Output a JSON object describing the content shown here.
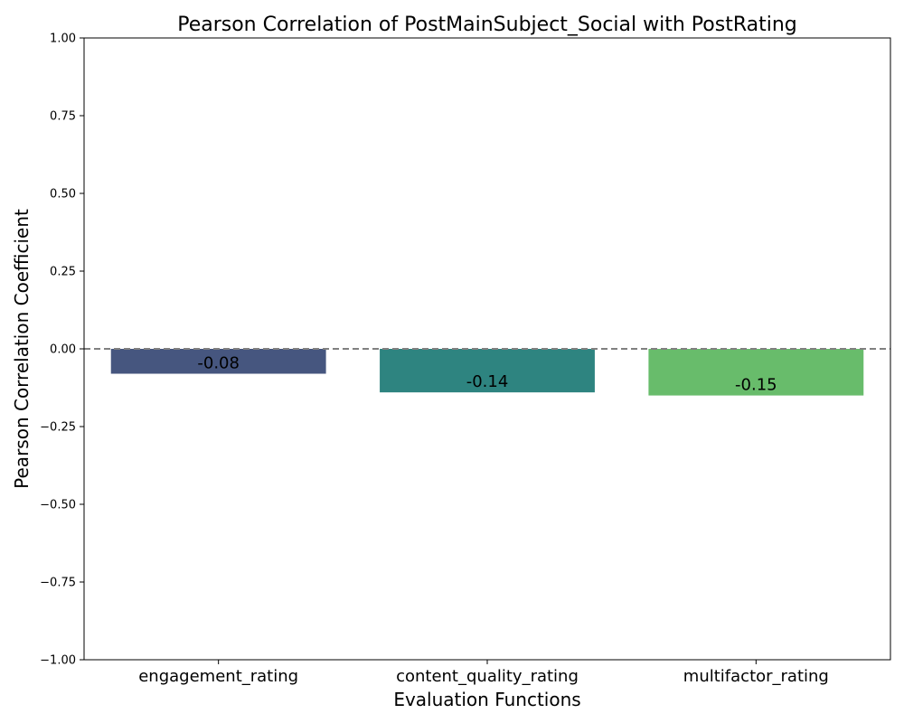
{
  "chart_data": {
    "type": "bar",
    "title": "Pearson Correlation of PostMainSubject_Social with PostRating",
    "xlabel": "Evaluation Functions",
    "ylabel": "Pearson Correlation Coefficient",
    "categories": [
      "engagement_rating",
      "content_quality_rating",
      "multifactor_rating"
    ],
    "values": [
      -0.08,
      -0.14,
      -0.15
    ],
    "value_labels": [
      "-0.08",
      "-0.14",
      "-0.15"
    ],
    "bar_colors": [
      "#46567f",
      "#2e8480",
      "#68bc6b"
    ],
    "ylim": [
      -1.0,
      1.0
    ],
    "yticks": [
      1.0,
      0.75,
      0.5,
      0.25,
      0.0,
      -0.25,
      -0.5,
      -0.75,
      -1.0
    ],
    "ytick_labels": [
      "1.00",
      "0.75",
      "0.50",
      "0.25",
      "0.00",
      "−0.25",
      "−0.50",
      "−0.75",
      "−1.00"
    ],
    "reference_line": {
      "y": 0.0,
      "style": "dashed",
      "color": "#808080"
    },
    "grid": false,
    "legend": "none"
  }
}
